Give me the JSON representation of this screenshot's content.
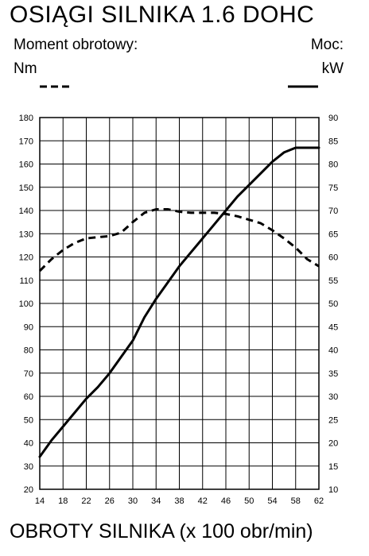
{
  "title": "OSIĄGI SILNIKA 1.6 DOHC",
  "left_label": "Moment obrotowy:",
  "left_unit": "Nm",
  "right_label": "Moc:",
  "right_unit": "kW",
  "x_title": "OBROTY SILNIKA (x 100 obr/min)",
  "chart_data": {
    "type": "line",
    "title": "OSIĄGI SILNIKA 1.6 DOHC",
    "xlabel": "OBROTY SILNIKA (x 100 obr/min)",
    "x_ticks": [
      14,
      18,
      22,
      26,
      30,
      34,
      38,
      42,
      46,
      50,
      54,
      58,
      62
    ],
    "xlim": [
      14,
      62
    ],
    "y_left": {
      "label": "Nm",
      "lim": [
        20,
        180
      ],
      "ticks": [
        20,
        30,
        40,
        50,
        60,
        70,
        80,
        90,
        100,
        110,
        120,
        130,
        140,
        150,
        160,
        170,
        180
      ]
    },
    "y_right": {
      "label": "kW",
      "lim": [
        10,
        90
      ],
      "ticks": [
        10,
        15,
        20,
        25,
        30,
        35,
        40,
        45,
        50,
        55,
        60,
        65,
        70,
        75,
        80,
        85,
        90
      ]
    },
    "grid": true,
    "series": [
      {
        "name": "Moment obrotowy:",
        "axis": "left",
        "style": "dashed",
        "x": [
          14,
          16,
          18,
          20,
          22,
          24,
          26,
          28,
          30,
          32,
          34,
          36,
          38,
          40,
          42,
          44,
          46,
          48,
          50,
          52,
          54,
          56,
          58,
          60,
          62
        ],
        "y": [
          114,
          119,
          123,
          126,
          128,
          128.5,
          129,
          130.5,
          135,
          139,
          140.5,
          140.5,
          139.5,
          139,
          139,
          139,
          138.5,
          137.5,
          136,
          134.5,
          131.5,
          128,
          124,
          119,
          116
        ]
      },
      {
        "name": "Moc:",
        "axis": "right",
        "style": "solid",
        "x": [
          14,
          16,
          18,
          20,
          22,
          24,
          26,
          28,
          30,
          32,
          34,
          36,
          38,
          40,
          42,
          44,
          46,
          48,
          50,
          52,
          54,
          56,
          58,
          60,
          62
        ],
        "y": [
          17,
          20.5,
          23.5,
          26.5,
          29.5,
          32,
          35,
          38.5,
          42,
          47,
          51,
          54.5,
          58,
          61,
          64,
          67,
          70,
          73,
          75.5,
          78,
          80.5,
          82.5,
          83.5,
          83.5,
          83.5
        ]
      }
    ]
  }
}
